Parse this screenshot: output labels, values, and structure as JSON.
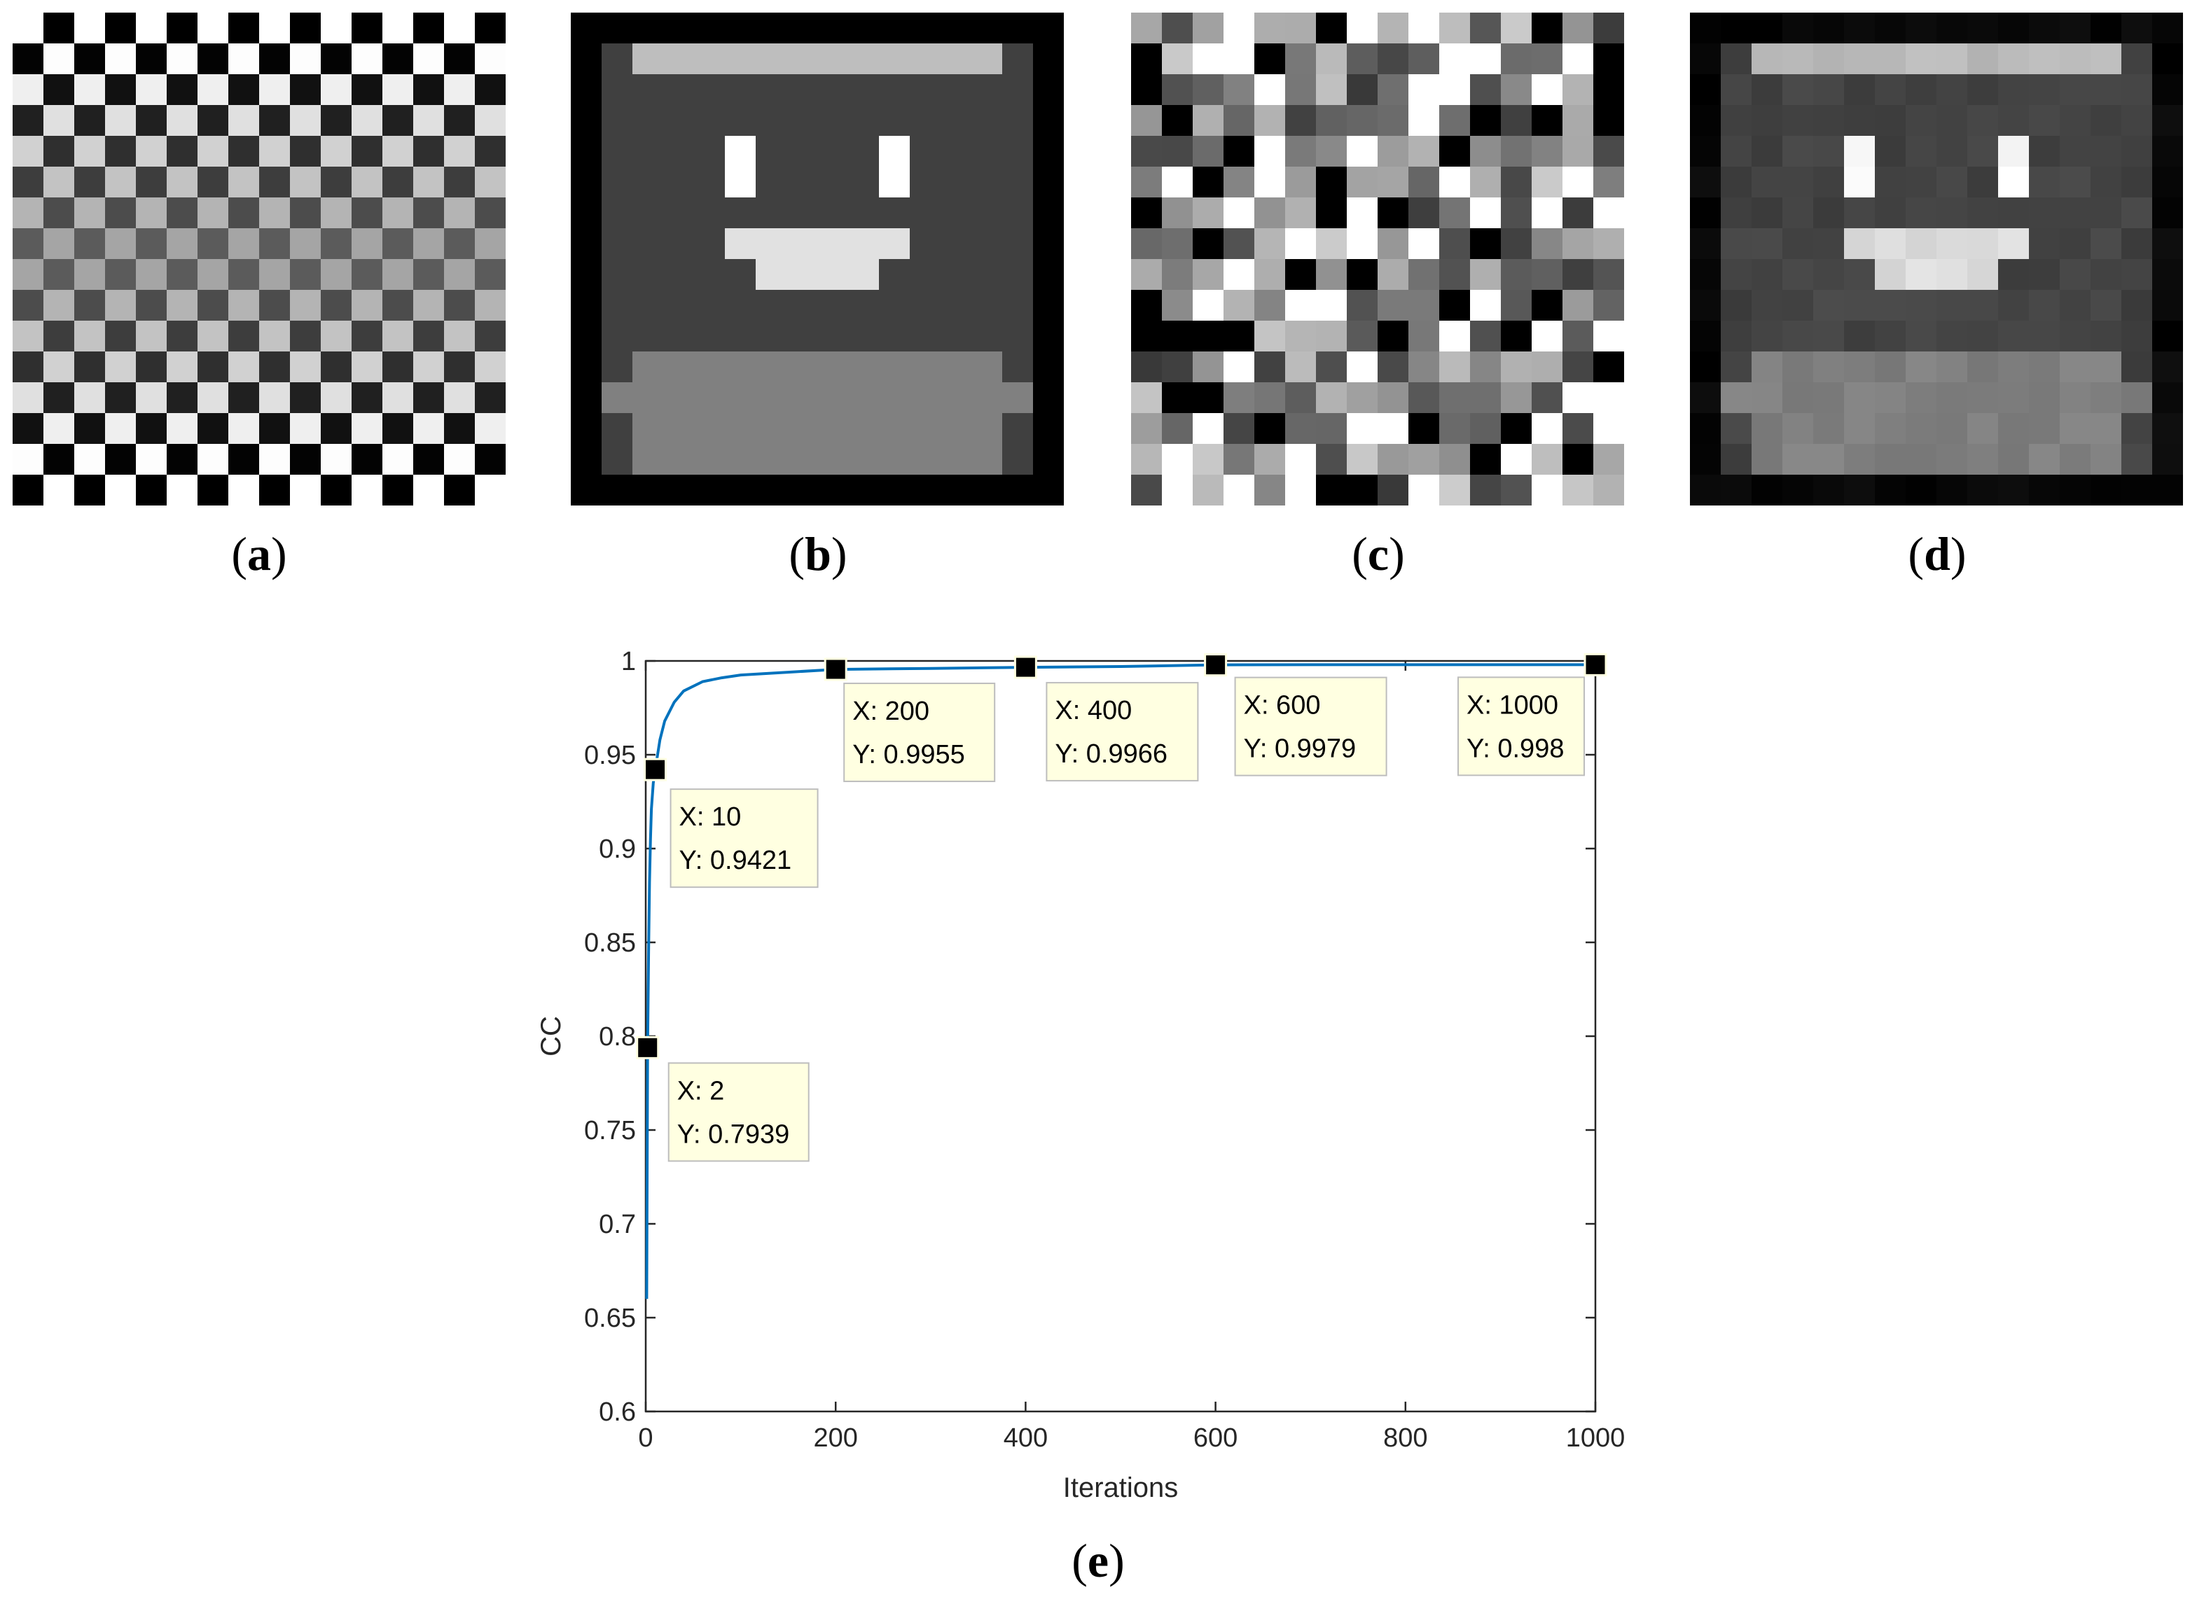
{
  "panels": [
    {
      "id": "a",
      "caption_prefix": "(",
      "letter": "a",
      "caption_suffix": ")",
      "pattern": "checkerboard"
    },
    {
      "id": "b",
      "caption_prefix": "(",
      "letter": "b",
      "caption_suffix": ")",
      "pattern": "smiley-face"
    },
    {
      "id": "c",
      "caption_prefix": "(",
      "letter": "c",
      "caption_suffix": ")",
      "pattern": "random-noise"
    },
    {
      "id": "d",
      "caption_prefix": "(",
      "letter": "d",
      "caption_suffix": ")",
      "pattern": "reconstructed-smiley-face"
    }
  ],
  "chart_caption": {
    "prefix": "(",
    "letter": "e",
    "suffix": ")"
  },
  "colors": {
    "line": "#0072BD",
    "tooltip_bg": "#FFFFE1",
    "tooltip_border": "#BDBDBD",
    "marker": "#000000"
  },
  "chart_data": {
    "type": "line",
    "title": "",
    "xlabel": "Iterations",
    "ylabel": "CC",
    "xlim": [
      0,
      1000
    ],
    "ylim": [
      0.6,
      1
    ],
    "xticks": [
      0,
      200,
      400,
      600,
      800,
      1000
    ],
    "yticks": [
      0.6,
      0.65,
      0.7,
      0.75,
      0.8,
      0.85,
      0.9,
      0.95,
      1
    ],
    "xtick_labels": [
      "0",
      "200",
      "400",
      "600",
      "800",
      "1000"
    ],
    "ytick_labels": [
      "0.6",
      "0.65",
      "0.7",
      "0.75",
      "0.8",
      "0.85",
      "0.9",
      "0.95",
      "1"
    ],
    "grid": false,
    "series": [
      {
        "x": [
          1,
          2,
          3,
          4,
          5,
          6,
          8,
          10,
          15,
          20,
          30,
          40,
          60,
          80,
          100,
          150,
          200,
          300,
          400,
          500,
          600,
          700,
          800,
          900,
          1000
        ],
        "y": [
          0.66,
          0.7939,
          0.845,
          0.882,
          0.905,
          0.921,
          0.935,
          0.9421,
          0.958,
          0.968,
          0.978,
          0.984,
          0.989,
          0.991,
          0.9925,
          0.994,
          0.9955,
          0.996,
          0.9966,
          0.997,
          0.9979,
          0.998,
          0.998,
          0.998,
          0.998
        ]
      }
    ],
    "datatips": [
      {
        "x": 2,
        "y": 0.7939,
        "line1": "X: 2",
        "line2": "Y: 0.7939"
      },
      {
        "x": 10,
        "y": 0.9421,
        "line1": "X: 10",
        "line2": "Y: 0.9421"
      },
      {
        "x": 200,
        "y": 0.9955,
        "line1": "X: 200",
        "line2": "Y: 0.9955"
      },
      {
        "x": 400,
        "y": 0.9966,
        "line1": "X: 400",
        "line2": "Y: 0.9966"
      },
      {
        "x": 600,
        "y": 0.9979,
        "line1": "X: 600",
        "line2": "Y: 0.9979"
      },
      {
        "x": 1000,
        "y": 0.998,
        "line1": "X: 1000",
        "line2": "Y: 0.998"
      }
    ]
  }
}
